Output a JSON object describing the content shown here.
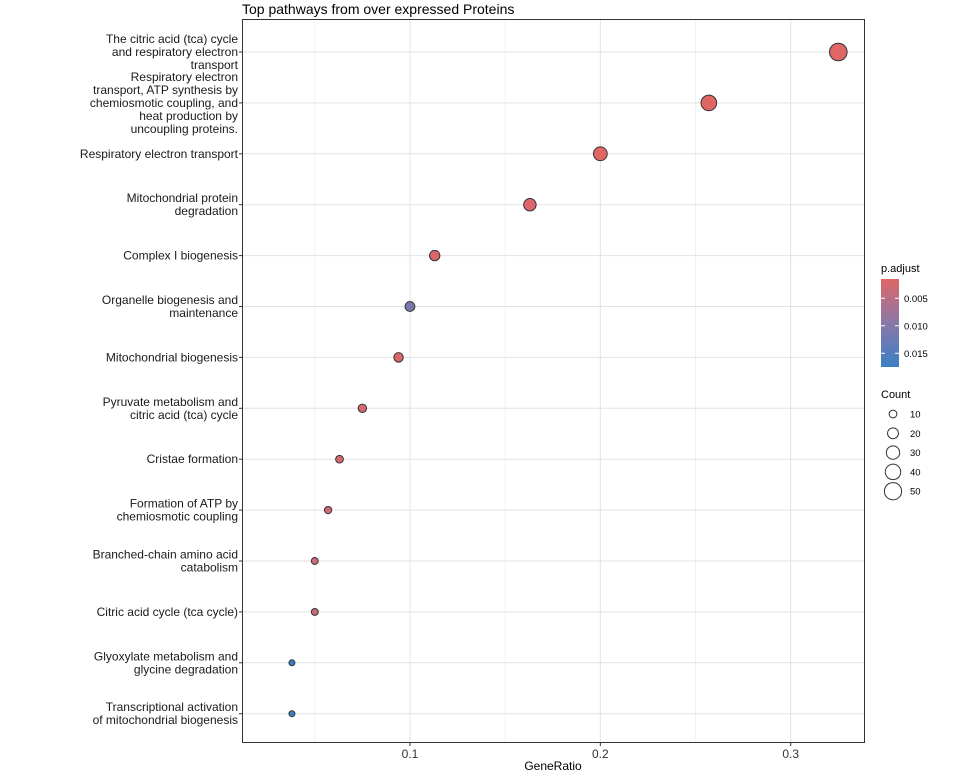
{
  "chart_data": {
    "type": "scatter",
    "title": "Top pathways from over expressed Proteins",
    "xlabel": "GeneRatio",
    "ylabel": "",
    "xlim": [
      0.0123,
      0.3385
    ],
    "xticks": [
      0.1,
      0.2,
      0.3
    ],
    "xtick_labels": [
      "0.1",
      "0.2",
      "0.3"
    ],
    "grid": true,
    "points": [
      {
        "label": "The citric acid (tca) cycle\nand respiratory electron\ntransport",
        "x": 0.325,
        "count": 52,
        "p_adjust": 0.0015
      },
      {
        "label": "Respiratory electron\ntransport, ATP synthesis by\nchemiosmotic coupling, and\nheat production by\nuncoupling proteins.",
        "x": 0.257,
        "count": 41,
        "p_adjust": 0.0015
      },
      {
        "label": "Respiratory electron transport",
        "x": 0.2,
        "count": 32,
        "p_adjust": 0.0015
      },
      {
        "label": "Mitochondrial protein\ndegradation",
        "x": 0.163,
        "count": 26,
        "p_adjust": 0.002
      },
      {
        "label": "Complex I biogenesis",
        "x": 0.113,
        "count": 18,
        "p_adjust": 0.002
      },
      {
        "label": "Organelle biogenesis and\nmaintenance",
        "x": 0.1,
        "count": 16,
        "p_adjust": 0.011
      },
      {
        "label": "Mitochondrial biogenesis",
        "x": 0.094,
        "count": 15,
        "p_adjust": 0.002
      },
      {
        "label": "Pyruvate metabolism and\ncitric acid (tca) cycle",
        "x": 0.075,
        "count": 12,
        "p_adjust": 0.0025
      },
      {
        "label": "Cristae formation",
        "x": 0.063,
        "count": 10,
        "p_adjust": 0.0025
      },
      {
        "label": "Formation of ATP by\nchemiosmotic coupling",
        "x": 0.057,
        "count": 9,
        "p_adjust": 0.003
      },
      {
        "label": "Branched-chain amino acid\ncatabolism",
        "x": 0.05,
        "count": 8,
        "p_adjust": 0.0035
      },
      {
        "label": "Citric acid cycle (tca cycle)",
        "x": 0.05,
        "count": 8,
        "p_adjust": 0.0035
      },
      {
        "label": "Glyoxylate metabolism and\nglycine degradation",
        "x": 0.038,
        "count": 6,
        "p_adjust": 0.0175
      },
      {
        "label": "Transcriptional activation\nof mitochondrial biogenesis",
        "x": 0.038,
        "count": 6,
        "p_adjust": 0.0175
      }
    ],
    "color_legend": {
      "title": "p.adjust",
      "breaks": [
        0.005,
        0.01,
        0.015
      ],
      "labels": [
        "0.005",
        "0.010",
        "0.015"
      ],
      "range": [
        0.0015,
        0.0175
      ],
      "low_color": "#E06666",
      "mid_color": "#8878A8",
      "high_color": "#3B7FC4"
    },
    "size_legend": {
      "title": "Count",
      "breaks": [
        10,
        20,
        30,
        40,
        50
      ],
      "labels": [
        "10",
        "20",
        "30",
        "40",
        "50"
      ]
    },
    "legend_position": "right"
  }
}
